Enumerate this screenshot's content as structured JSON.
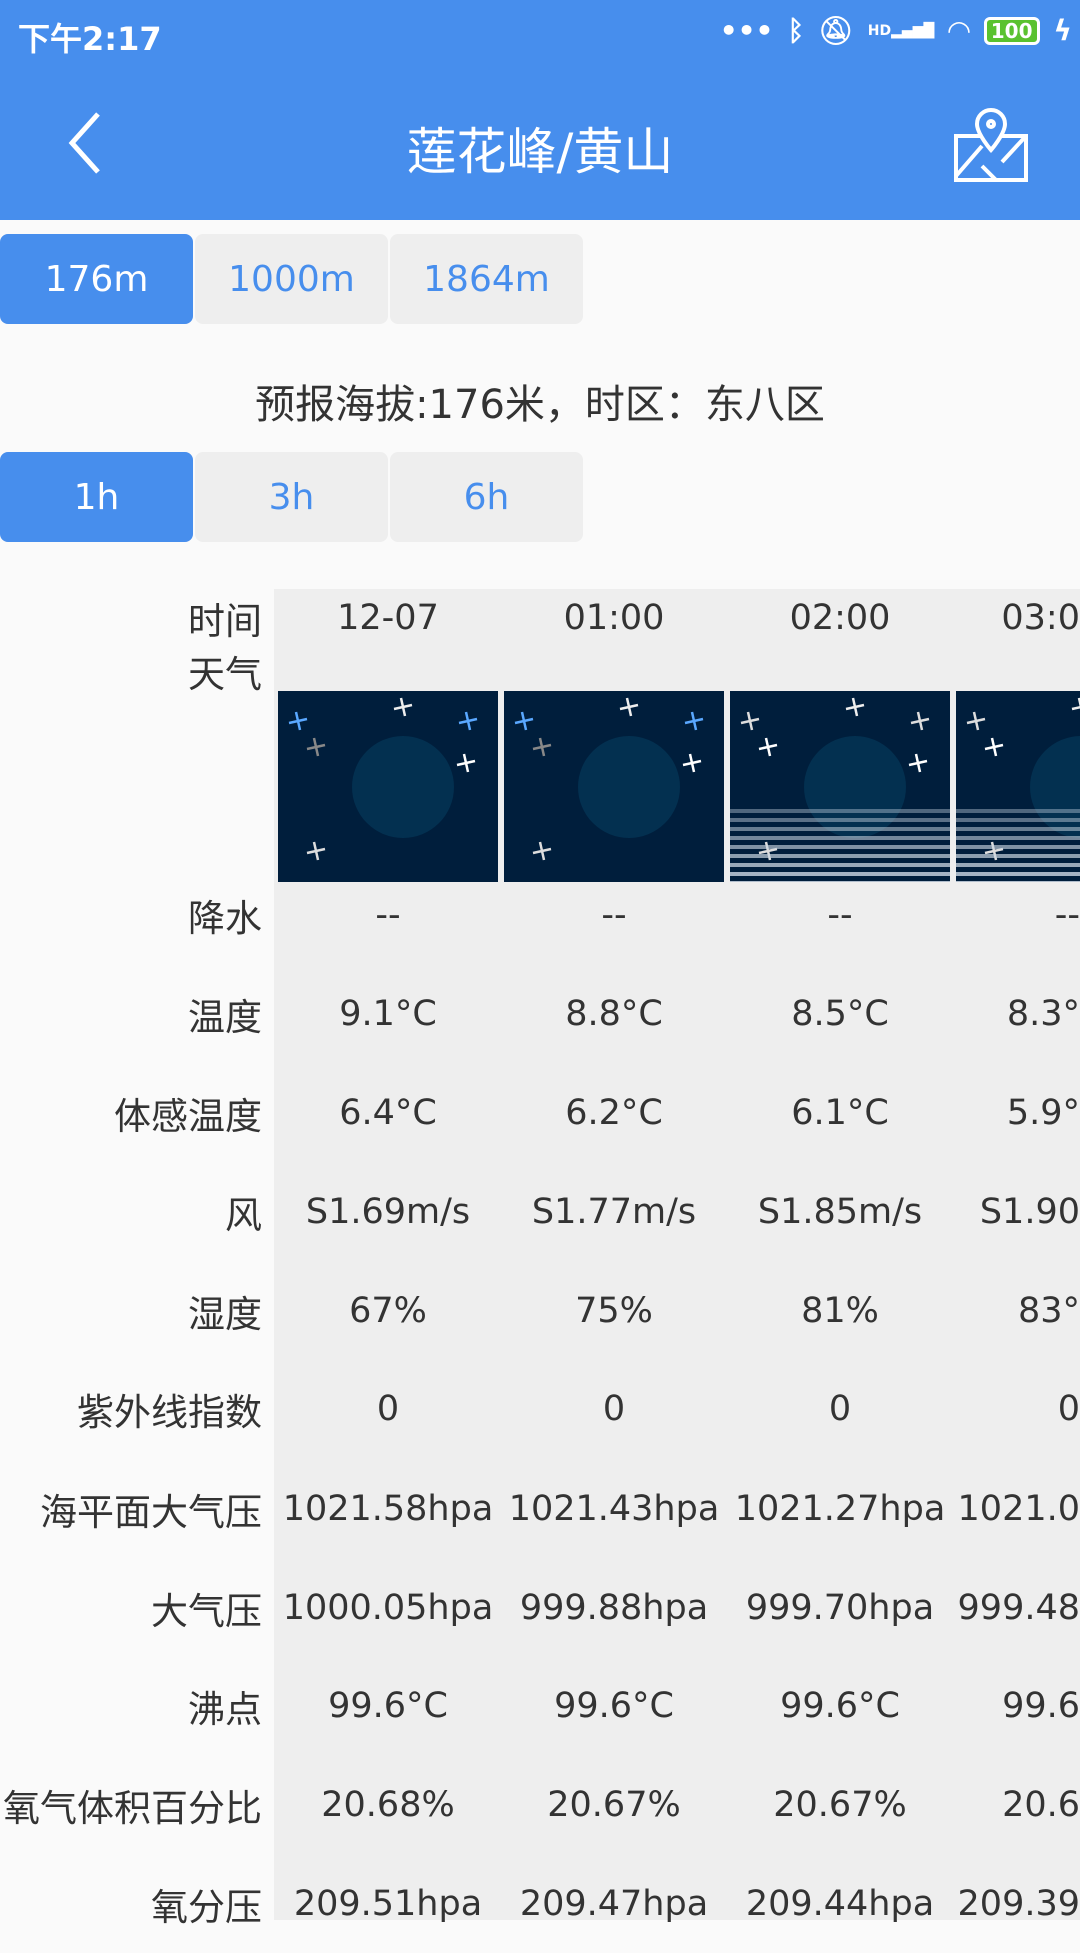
{
  "status": {
    "time": "下午2:17",
    "battery": "100",
    "signal": "HD",
    "icons": [
      "more-dots-icon",
      "bluetooth-icon",
      "mute-bell-icon",
      "signal-icon",
      "wifi-icon",
      "battery-icon",
      "charging-icon"
    ]
  },
  "header": {
    "title": "莲花峰/黄山",
    "back_icon": "chevron-left-icon",
    "map_icon": "map-pin-icon"
  },
  "altitude_tabs": [
    {
      "label": "176m",
      "selected": true
    },
    {
      "label": "1000m",
      "selected": false
    },
    {
      "label": "1864m",
      "selected": false
    }
  ],
  "info": "预报海拔:176米，时区：东八区",
  "interval_tabs": [
    {
      "label": "1h",
      "selected": true
    },
    {
      "label": "3h",
      "selected": false
    },
    {
      "label": "6h",
      "selected": false
    }
  ],
  "colors": {
    "accent": "#478eed",
    "icon_bg": "#001e3c",
    "moon": "#fff1c8"
  },
  "table": {
    "labels": [
      "时间",
      "天气",
      "降水",
      "温度",
      "体感温度",
      "风",
      "湿度",
      "紫外线指数",
      "海平面大气压",
      "大气压",
      "沸点",
      "氧气体积百分比",
      "氧分压"
    ],
    "columns": [
      {
        "time": "12-07",
        "weather": "clear-night",
        "precip": "--",
        "temp": "9.1°C",
        "feels": "6.4°C",
        "wind": "S1.69m/s",
        "humidity": "67%",
        "uv": "0",
        "sea_pressure": "1021.58hpa",
        "pressure": "1000.05hpa",
        "boiling": "99.6°C",
        "oxygen": "20.68%",
        "o2_pressure": "209.51hpa"
      },
      {
        "time": "01:00",
        "weather": "clear-night",
        "precip": "--",
        "temp": "8.8°C",
        "feels": "6.2°C",
        "wind": "S1.77m/s",
        "humidity": "75%",
        "uv": "0",
        "sea_pressure": "1021.43hpa",
        "pressure": "999.88hpa",
        "boiling": "99.6°C",
        "oxygen": "20.67%",
        "o2_pressure": "209.47hpa"
      },
      {
        "time": "02:00",
        "weather": "haze-night",
        "precip": "--",
        "temp": "8.5°C",
        "feels": "6.1°C",
        "wind": "S1.85m/s",
        "humidity": "81%",
        "uv": "0",
        "sea_pressure": "1021.27hpa",
        "pressure": "999.70hpa",
        "boiling": "99.6°C",
        "oxygen": "20.67%",
        "o2_pressure": "209.44hpa"
      },
      {
        "time": "03:0",
        "weather": "haze-night",
        "precip": "--",
        "temp": "8.3°",
        "feels": "5.9°",
        "wind": "S1.90",
        "humidity": "83°",
        "uv": "0",
        "sea_pressure": "1021.0",
        "pressure": "999.48",
        "boiling": "99.6",
        "oxygen": "20.6",
        "o2_pressure": "209.39"
      }
    ]
  }
}
